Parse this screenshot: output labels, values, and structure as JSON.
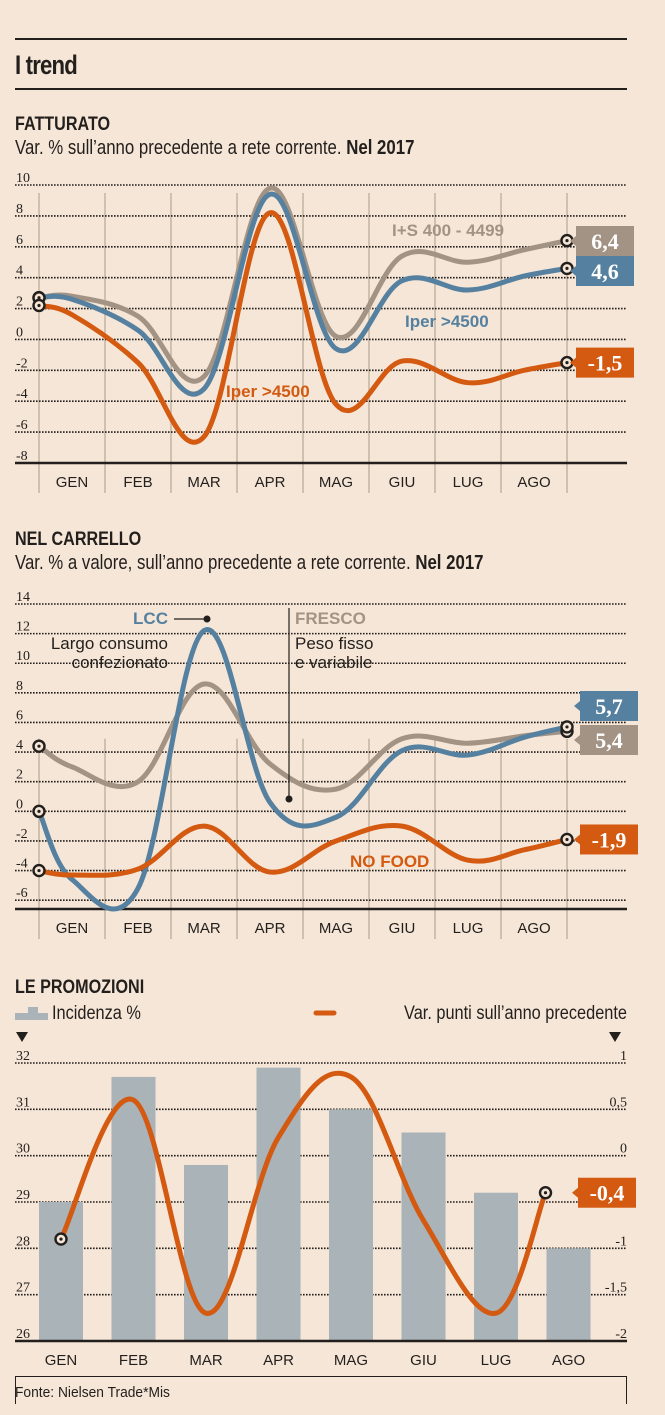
{
  "header": {
    "title": "I trend"
  },
  "colors": {
    "background": "#f5e6d7",
    "gray_line": "#a39385",
    "blue_line": "#55809f",
    "orange_line": "#d35a10",
    "bar": "#a9b3b8",
    "grid": "#231f1c",
    "month_line": "#c4b3a0"
  },
  "source": "Fonte: Nielsen Trade*Mis",
  "chart_data": [
    {
      "id": "fatturato",
      "type": "line",
      "title": "FATTURATO",
      "subtitle": "Var. % sull’anno precedente a rete corrente.",
      "subtitle_bold": "Nel 2017",
      "categories": [
        "GEN",
        "FEB",
        "MAR",
        "APR",
        "MAG",
        "GIU",
        "LUG",
        "AGO"
      ],
      "yticks": [
        "10",
        "8",
        "6",
        "4",
        "2",
        "0",
        "-2",
        "-4",
        "-6",
        "-8"
      ],
      "ylim": [
        -8,
        10
      ],
      "grid": true,
      "series": [
        {
          "name": "I+S 400 - 4499",
          "color": "#a39385",
          "start": 2.7,
          "values": [
            2.8,
            1.5,
            -2.4,
            9.8,
            0.2,
            5.4,
            5.0,
            5.8
          ],
          "end": 6.4,
          "end_label": "6,4",
          "label_pos": [
            0.63,
            6.3
          ]
        },
        {
          "name": "Iper >4500",
          "color": "#55809f",
          "start": 2.7,
          "values": [
            2.6,
            0.6,
            -3.2,
            9.4,
            -0.6,
            3.8,
            3.2,
            4.1
          ],
          "end": 4.6,
          "end_label": "4,6",
          "label_pos": [
            0.72,
            1.3
          ]
        },
        {
          "name": "Iper >4500",
          "color": "#d35a10",
          "start": 2.2,
          "values": [
            1.6,
            -1.5,
            -6.3,
            8.2,
            -4.2,
            -1.4,
            -2.8,
            -2.0
          ],
          "end": -1.5,
          "end_label": "-1,5",
          "label_pos": [
            0.4,
            -3.2
          ]
        }
      ]
    },
    {
      "id": "nel_carrello",
      "type": "line",
      "title": "NEL CARRELLO",
      "subtitle": "Var. % a valore, sull’anno precedente a rete corrente.",
      "subtitle_bold": "Nel 2017",
      "categories": [
        "GEN",
        "FEB",
        "MAR",
        "APR",
        "MAG",
        "GIU",
        "LUG",
        "AGO"
      ],
      "yticks": [
        "14",
        "12",
        "10",
        "8",
        "6",
        "4",
        "2",
        "0",
        "-2",
        "-4",
        "-6"
      ],
      "ylim": [
        -7,
        14
      ],
      "grid": true,
      "annotations": [
        {
          "key": "LCC",
          "text": "LCC",
          "desc": [
            "Largo consumo",
            "confezionato"
          ],
          "color": "#55809f"
        },
        {
          "key": "FRESCO",
          "text": "FRESCO",
          "desc": [
            "Peso fisso",
            "e variabile"
          ],
          "color": "#a39385"
        },
        {
          "key": "NOFOOD",
          "text": "NO FOOD",
          "color": "#d35a10"
        }
      ],
      "series": [
        {
          "name": "Fresco",
          "color": "#a39385",
          "start": 4.4,
          "values": [
            3.0,
            2.0,
            8.6,
            3.2,
            1.5,
            4.9,
            4.6,
            5.1
          ],
          "end": 5.4,
          "end_label": "5,4"
        },
        {
          "name": "LCC",
          "color": "#55809f",
          "start": 0.0,
          "values": [
            -4.6,
            -5.2,
            12.2,
            0.6,
            -0.4,
            4.1,
            3.8,
            5.0
          ],
          "end": 5.7,
          "end_label": "5,7"
        },
        {
          "name": "No food",
          "color": "#d35a10",
          "start": -4.0,
          "values": [
            -4.3,
            -3.9,
            -1.0,
            -4.1,
            -2.0,
            -1.0,
            -3.3,
            -2.6
          ],
          "end": -1.9,
          "end_label": "-1,9"
        }
      ]
    },
    {
      "id": "le_promozioni",
      "type": "bar",
      "title": "LE PROMOZIONI",
      "legend": [
        {
          "kind": "bar",
          "label": "Incidenza %"
        },
        {
          "kind": "line",
          "label": "Var. punti sull’anno precedente"
        }
      ],
      "categories": [
        "GEN",
        "FEB",
        "MAR",
        "APR",
        "MAG",
        "GIU",
        "LUG",
        "AGO"
      ],
      "left_axis": {
        "ticks": [
          "32",
          "31",
          "30",
          "29",
          "28",
          "27",
          "26"
        ],
        "ylim": [
          26,
          32
        ]
      },
      "right_axis": {
        "ticks": [
          "1",
          "0,5",
          "0",
          "",
          "-1",
          "-1,5",
          "-2"
        ],
        "ylim": [
          -2,
          1
        ]
      },
      "grid": true,
      "bars": {
        "name": "Incidenza %",
        "color": "#a9b3b8",
        "values": [
          29.0,
          31.7,
          29.8,
          31.9,
          31.0,
          30.5,
          29.2,
          28.0
        ]
      },
      "line": {
        "name": "Var. punti sull’anno precedente",
        "color": "#d35a10",
        "values": [
          -0.9,
          0.6,
          -1.7,
          0.2,
          0.85,
          -0.7,
          -1.7,
          -0.4
        ],
        "end_label": "-0,4"
      }
    }
  ]
}
